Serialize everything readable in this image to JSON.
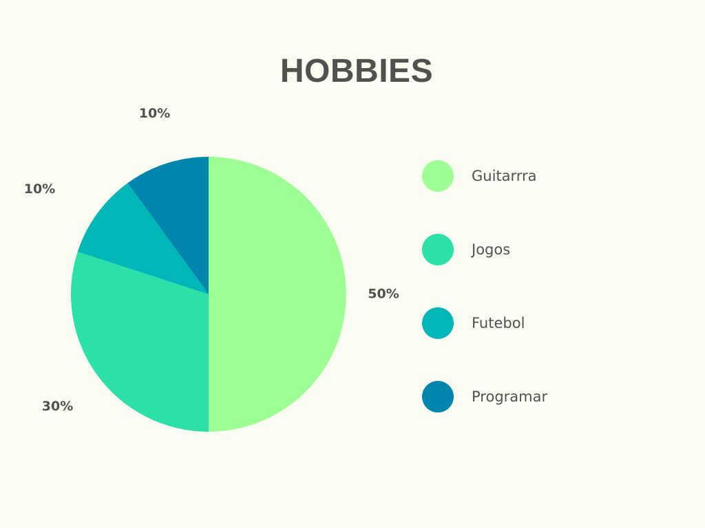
{
  "chart_data": {
    "type": "pie",
    "title": "HOBBIES",
    "categories": [
      "Guitarrra",
      "Jogos",
      "Futebol",
      "Programar"
    ],
    "values": [
      50,
      30,
      10,
      10
    ],
    "value_labels": [
      "50%",
      "30%",
      "10%",
      "10%"
    ],
    "colors": [
      "#9dff94",
      "#2be0a9",
      "#00b6b6",
      "#0085ad"
    ],
    "legend_position": "right"
  }
}
